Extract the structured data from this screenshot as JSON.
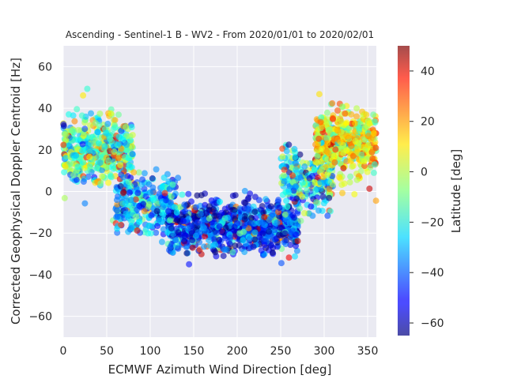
{
  "chart_data": {
    "type": "scatter",
    "title": "Ascending - Sentinel-1 B - WV2 - From 2020/01/01 to 2020/02/01",
    "xlabel": "ECMWF Azimuth Wind Direction [deg]",
    "ylabel": "Corrected Geophysical Doppler Centroid [Hz]",
    "xlim": [
      0,
      360
    ],
    "ylim": [
      -70,
      70
    ],
    "xticks": [
      0,
      50,
      100,
      150,
      200,
      250,
      300,
      350
    ],
    "yticks": [
      -60,
      -40,
      -20,
      0,
      20,
      40,
      60
    ],
    "grid": true,
    "colorbar": {
      "label": "Latitude [deg]",
      "range": [
        -65,
        50
      ],
      "ticks": [
        -60,
        -40,
        -20,
        0,
        20,
        40
      ],
      "colormap": "jet"
    },
    "clusters": [
      {
        "x_range": [
          0,
          80
        ],
        "y_center": 20,
        "y_spread": 14,
        "lat_center": -15,
        "lat_spread": 15,
        "count": 550
      },
      {
        "x_range": [
          60,
          130
        ],
        "y_center": -5,
        "y_spread": 12,
        "lat_center": -30,
        "lat_spread": 15,
        "count": 300
      },
      {
        "x_range": [
          120,
          270
        ],
        "y_center": -17,
        "y_spread": 10,
        "lat_center": -45,
        "lat_spread": 18,
        "count": 900
      },
      {
        "x_range": [
          250,
          310
        ],
        "y_center": 5,
        "y_spread": 12,
        "lat_center": -25,
        "lat_spread": 18,
        "count": 250
      },
      {
        "x_range": [
          290,
          360
        ],
        "y_center": 23,
        "y_spread": 13,
        "lat_center": 5,
        "lat_spread": 14,
        "count": 550
      }
    ],
    "point_style": {
      "radius": 4,
      "opacity": 0.6
    }
  },
  "colors": {
    "plot_background": "#eaeaf2",
    "grid": "#ffffff",
    "text": "#262626"
  }
}
